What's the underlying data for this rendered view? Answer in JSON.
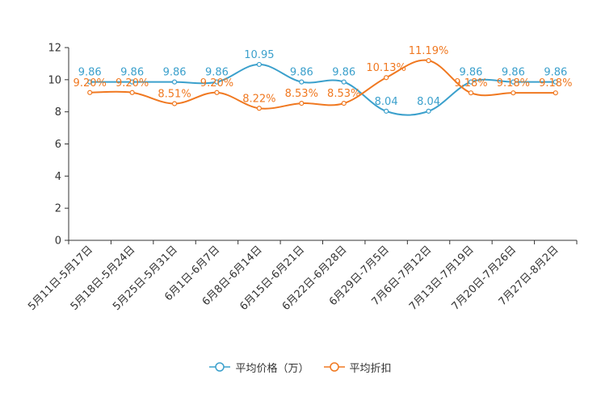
{
  "chart_data": {
    "type": "line",
    "categories": [
      "5月11日-5月17日",
      "5月18日-5月24日",
      "5月25日-5月31日",
      "6月1日-6月7日",
      "6月8日-6月14日",
      "6月15日-6月21日",
      "6月22日-6月28日",
      "6月29日-7月5日",
      "7月6日-7月12日",
      "7月13日-7月19日",
      "7月20日-7月26日",
      "7月27日-8月2日"
    ],
    "ylim": [
      0,
      12
    ],
    "yticks": [
      0,
      2,
      4,
      6,
      8,
      10,
      12
    ],
    "series": [
      {
        "name": "平均价格（万）",
        "color": "#3ba0cc",
        "values": [
          9.86,
          9.86,
          9.86,
          9.86,
          10.95,
          9.86,
          9.86,
          8.04,
          8.04,
          9.86,
          9.86,
          9.86
        ],
        "labels": [
          "9.86",
          "9.86",
          "9.86",
          "9.86",
          "10.95",
          "9.86",
          "9.86",
          "8.04",
          "8.04",
          "9.86",
          "9.86",
          "9.86"
        ]
      },
      {
        "name": "平均折扣",
        "color": "#f07820",
        "values": [
          9.2,
          9.2,
          8.51,
          9.2,
          8.22,
          8.53,
          8.53,
          10.13,
          11.19,
          9.18,
          9.18,
          9.18
        ],
        "labels": [
          "9.20%",
          "9.20%",
          "8.51%",
          "9.20%",
          "8.22%",
          "8.53%",
          "8.53%",
          "10.13%",
          "11.19%",
          "9.18%",
          "9.18%",
          "9.18%"
        ]
      }
    ],
    "legend_position": "bottom-center"
  }
}
